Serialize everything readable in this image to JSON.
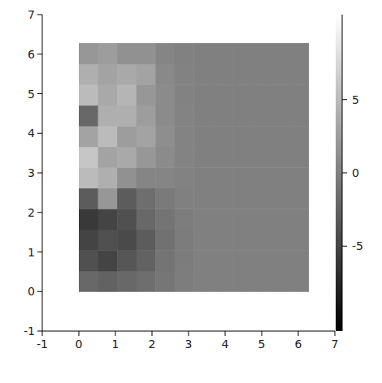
{
  "chart_data": {
    "type": "heatmap",
    "xlim": [
      -1,
      7
    ],
    "ylim": [
      -1,
      7
    ],
    "xticks": [
      -1,
      0,
      1,
      2,
      3,
      4,
      5,
      6,
      7
    ],
    "yticks": [
      -1,
      0,
      1,
      2,
      3,
      4,
      5,
      6,
      7
    ],
    "extent": [
      0,
      6.28,
      0,
      6.28
    ],
    "cells": [
      [
        -2,
        -2.5,
        -2,
        -1.5,
        -0.8,
        -0.2,
        0,
        0,
        0,
        0,
        0,
        0
      ],
      [
        -4,
        -5,
        -3.5,
        -2.5,
        -1,
        -0.3,
        0,
        0,
        0,
        0,
        0,
        0
      ],
      [
        -5,
        -4,
        -4.5,
        -3,
        -1.2,
        -0.3,
        0,
        0,
        0,
        0,
        0,
        0
      ],
      [
        -6,
        -5,
        -4,
        -2,
        -1,
        -0.2,
        0,
        0,
        0,
        0,
        0,
        0
      ],
      [
        -3,
        2,
        -3,
        -1.5,
        -0.5,
        0,
        0,
        0,
        0,
        0,
        0,
        0
      ],
      [
        5,
        4,
        1.5,
        0.5,
        0.5,
        0.2,
        0,
        0,
        0,
        0,
        0,
        0
      ],
      [
        6,
        3,
        3.5,
        2,
        1,
        0.3,
        0,
        0,
        0,
        0,
        0,
        0
      ],
      [
        3,
        5,
        2.5,
        3,
        1.2,
        0.3,
        0,
        0,
        0,
        0,
        0,
        0
      ],
      [
        -2,
        4,
        4,
        2.5,
        1,
        0.3,
        0,
        0,
        0,
        0,
        0,
        0
      ],
      [
        5,
        3.5,
        4.5,
        2,
        1,
        0.2,
        0,
        0,
        0,
        0,
        0,
        0
      ],
      [
        4,
        3,
        3.5,
        3,
        0.8,
        0.2,
        0,
        0,
        0,
        0,
        0,
        0
      ],
      [
        2,
        2.5,
        1.5,
        1.5,
        0.5,
        0.1,
        0,
        0,
        0,
        0,
        0,
        0
      ]
    ],
    "colorbar": {
      "range": [
        -10.8,
        10.8
      ],
      "ticks": [
        -5,
        0,
        5
      ]
    }
  }
}
